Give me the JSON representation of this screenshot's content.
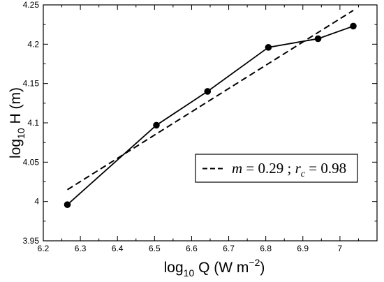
{
  "chart_data": {
    "type": "scatter",
    "xlabel": {
      "base": "log",
      "sub": "10",
      "text": " Q (W m",
      "sup": "−2",
      "tail": ")"
    },
    "ylabel": {
      "base": "log",
      "sub": "10",
      "text": " H (m)"
    },
    "xlim": [
      6.2,
      7.1
    ],
    "ylim": [
      3.95,
      4.25
    ],
    "xticks": [
      6.2,
      6.3,
      6.4,
      6.5,
      6.6,
      6.7,
      6.8,
      6.9,
      7
    ],
    "xtick_labels": [
      "6.2",
      "6.3",
      "6.4",
      "6.5",
      "6.6",
      "6.7",
      "6.8",
      "6.9",
      "7"
    ],
    "yticks": [
      3.95,
      4,
      4.05,
      4.1,
      4.15,
      4.2,
      4.25
    ],
    "ytick_labels": [
      "3.95",
      "4",
      "4.05",
      "4.1",
      "4.15",
      "4.2",
      "4.25"
    ],
    "grid": false,
    "series": [
      {
        "style": "solid-line-with-circle-markers",
        "x": [
          6.265,
          6.505,
          6.643,
          6.807,
          6.941,
          7.036
        ],
        "y": [
          3.996,
          4.097,
          4.14,
          4.196,
          4.207,
          4.223
        ]
      },
      {
        "style": "dashed-fit-line",
        "x": [
          6.265,
          7.036
        ],
        "y": [
          4.015,
          4.243
        ]
      }
    ],
    "legend": {
      "placement": "lower-right",
      "m_label": "m",
      "m_value": " = 0.29 ; ",
      "r_label": "r",
      "r_sub": "c",
      "r_value": " = 0.98"
    }
  }
}
